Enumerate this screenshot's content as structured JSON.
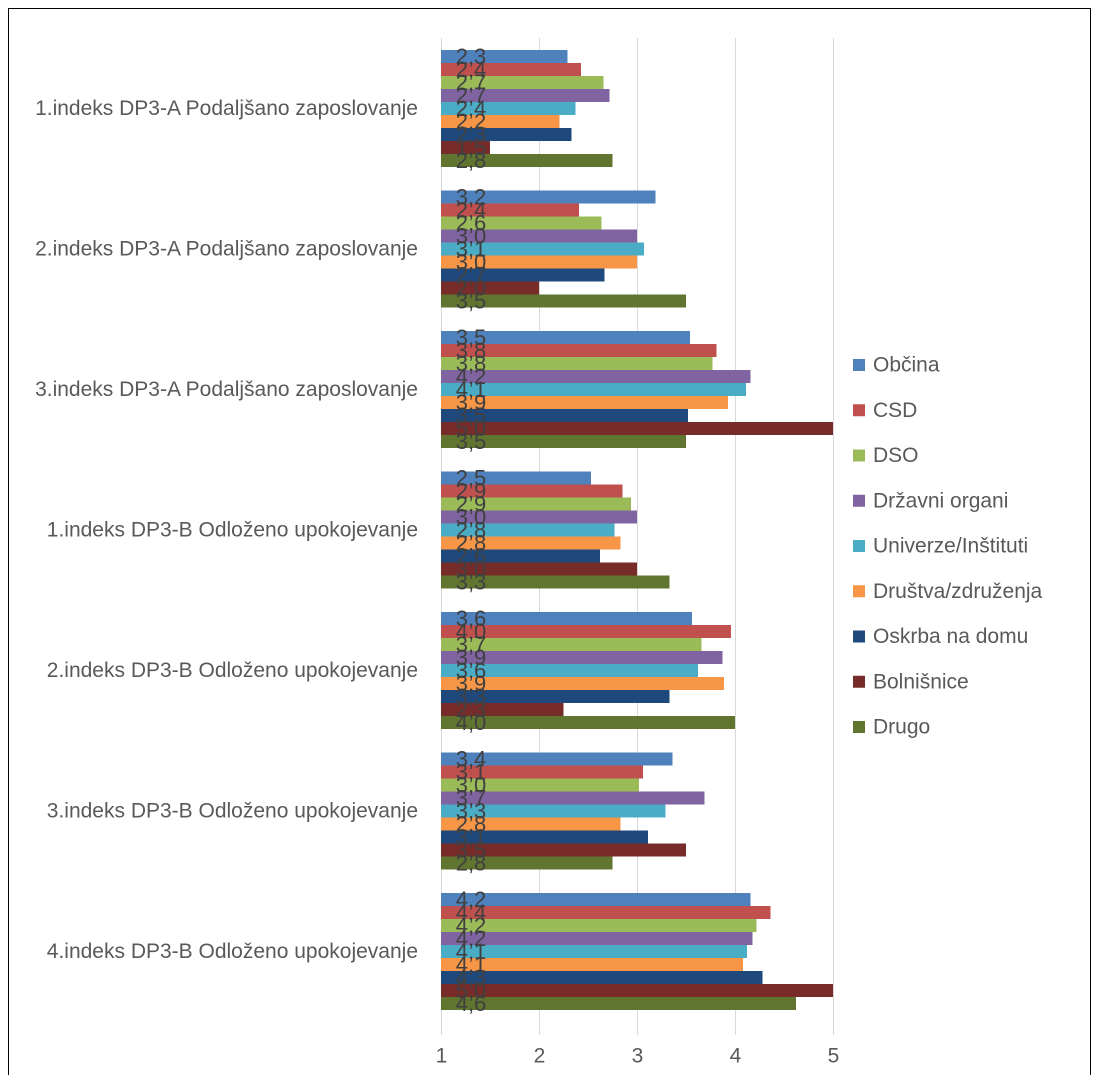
{
  "chart_data": {
    "type": "bar",
    "orientation": "horizontal",
    "categories": [
      "1.indeks DP3-A Podaljšano zaposlovanje",
      "2.indeks DP3-A Podaljšano zaposlovanje",
      "3.indeks DP3-A Podaljšano zaposlovanje",
      "1.indeks DP3-B Odloženo upokojevanje",
      "2.indeks DP3-B Odloženo upokojevanje",
      "3.indeks DP3-B Odloženo upokojevanje",
      "4.indeks DP3-B Odloženo upokojevanje"
    ],
    "series": [
      {
        "name": "Občina",
        "color": "#4F81BD",
        "values": [
          2.29,
          3.19,
          3.54,
          2.53,
          3.56,
          3.36,
          4.16
        ],
        "labels": [
          "2,3",
          "3,2",
          "3,5",
          "2,5",
          "3,6",
          "3,4",
          "4,2"
        ]
      },
      {
        "name": "CSD",
        "color": "#C0504D",
        "values": [
          2.43,
          2.41,
          3.81,
          2.85,
          3.96,
          3.06,
          4.36
        ],
        "labels": [
          "2,4",
          "2,4",
          "3,8",
          "2,9",
          "4,0",
          "3,1",
          "4,4"
        ]
      },
      {
        "name": "DSO",
        "color": "#9BBB59",
        "values": [
          2.66,
          2.64,
          3.77,
          2.94,
          3.66,
          3.02,
          4.22
        ],
        "labels": [
          "2,7",
          "2,6",
          "3,8",
          "2,9",
          "3,7",
          "3,0",
          "4,2"
        ]
      },
      {
        "name": "Državni organi",
        "color": "#8064A2",
        "values": [
          2.72,
          3.0,
          4.16,
          3.0,
          3.87,
          3.69,
          4.18
        ],
        "labels": [
          "2,7",
          "3,0",
          "4,2",
          "3,0",
          "3,9",
          "3,7",
          "4,2"
        ]
      },
      {
        "name": "Univerze/Inštituti",
        "color": "#4BACC6",
        "values": [
          2.37,
          3.07,
          4.11,
          2.77,
          3.62,
          3.29,
          4.12
        ],
        "labels": [
          "2,4",
          "3,1",
          "4,1",
          "2,8",
          "3,6",
          "3,3",
          "4,1"
        ]
      },
      {
        "name": "Društva/združenja",
        "color": "#F79646",
        "values": [
          2.21,
          3.0,
          3.93,
          2.83,
          3.89,
          2.83,
          4.08
        ],
        "labels": [
          "2,2",
          "3,0",
          "3,9",
          "2,8",
          "3,9",
          "2,8",
          "4,1"
        ]
      },
      {
        "name": "Oskrba na domu",
        "color": "#1F497D",
        "values": [
          2.33,
          2.67,
          3.52,
          2.62,
          3.33,
          3.11,
          4.28
        ],
        "labels": [
          "2,3",
          "2,7",
          "3,5",
          "2,6",
          "3,3",
          "3,1",
          "4,3"
        ]
      },
      {
        "name": "Bolnišnice",
        "color": "#772C2A",
        "values": [
          1.5,
          2.0,
          5.0,
          3.0,
          2.25,
          3.5,
          5.0
        ],
        "labels": [
          "1,5",
          "2,0",
          "5,0",
          "3,0",
          "2,3",
          "3,5",
          "5,0"
        ]
      },
      {
        "name": "Drugo",
        "color": "#5F7530",
        "values": [
          2.75,
          3.5,
          3.5,
          3.33,
          4.0,
          2.75,
          4.62
        ],
        "labels": [
          "2,8",
          "3,5",
          "3,5",
          "3,3",
          "4,0",
          "2,8",
          "4,6"
        ]
      }
    ],
    "xlim": [
      1,
      5
    ],
    "xticks": [
      1,
      2,
      3,
      4,
      5
    ],
    "grid": true,
    "legend": "right"
  }
}
